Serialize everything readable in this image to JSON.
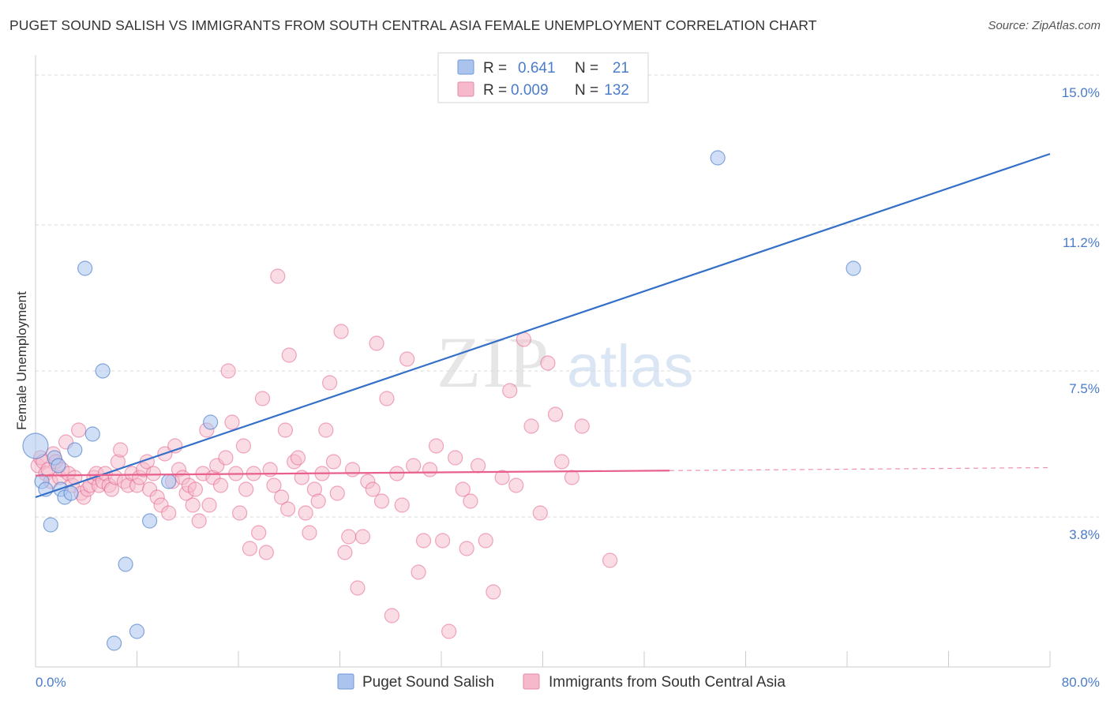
{
  "title": "PUGET SOUND SALISH VS IMMIGRANTS FROM SOUTH CENTRAL ASIA FEMALE UNEMPLOYMENT CORRELATION CHART",
  "source": "Source: ZipAtlas.com",
  "watermark": {
    "zip": "ZIP",
    "atlas": "atlas"
  },
  "colors": {
    "blue": "#4a7cc9",
    "blue_fill": "#aac4ee",
    "blue_line": "#3570c8",
    "pink": "#e3638d",
    "pink_fill": "#f6b9cc",
    "pink_line": "#e8608c",
    "grid": "#d9d9d9"
  },
  "legend": {
    "rows": [
      {
        "r_label": "R =",
        "r_value": "0.641",
        "n_label": "N =",
        "n_value": "21",
        "series": "blue"
      },
      {
        "r_label": "R =",
        "r_value": "0.009",
        "n_label": "N =",
        "n_value": "132",
        "series": "pink"
      }
    ]
  },
  "chart_data": {
    "type": "scatter",
    "title": "PUGET SOUND SALISH VS IMMIGRANTS FROM SOUTH CENTRAL ASIA FEMALE UNEMPLOYMENT CORRELATION CHART",
    "xlabel": "",
    "ylabel": "Female Unemployment",
    "xlim": [
      0,
      80
    ],
    "ylim": [
      0,
      15.5
    ],
    "x_tick_labels": [
      "0.0%",
      "80.0%"
    ],
    "y_ticks": [
      3.8,
      7.5,
      11.2,
      15.0
    ],
    "y_tick_labels": [
      "3.8%",
      "7.5%",
      "11.2%",
      "15.0%"
    ],
    "grid": true,
    "legend_position": "top-center",
    "series": [
      {
        "name": "Puget Sound Salish",
        "color": "blue",
        "points": [
          [
            0.0,
            5.6
          ],
          [
            0.5,
            4.7
          ],
          [
            0.8,
            4.5
          ],
          [
            1.2,
            3.6
          ],
          [
            1.5,
            5.3
          ],
          [
            1.8,
            5.1
          ],
          [
            2.0,
            4.5
          ],
          [
            2.3,
            4.3
          ],
          [
            2.8,
            4.4
          ],
          [
            3.1,
            5.5
          ],
          [
            3.9,
            10.1
          ],
          [
            4.5,
            5.9
          ],
          [
            5.3,
            7.5
          ],
          [
            6.2,
            0.6
          ],
          [
            7.1,
            2.6
          ],
          [
            8.0,
            0.9
          ],
          [
            9.0,
            3.7
          ],
          [
            10.5,
            4.7
          ],
          [
            13.8,
            6.2
          ],
          [
            53.8,
            12.9
          ],
          [
            64.5,
            10.1
          ]
        ],
        "trend": {
          "x": [
            0,
            80
          ],
          "y": [
            4.3,
            13.0
          ],
          "dashed_from": null
        }
      },
      {
        "name": "Immigrants from South Central Asia",
        "color": "pink",
        "points": [
          [
            0.2,
            5.1
          ],
          [
            0.4,
            5.3
          ],
          [
            0.6,
            5.2
          ],
          [
            0.8,
            4.9
          ],
          [
            1.0,
            5.0
          ],
          [
            1.2,
            4.7
          ],
          [
            1.4,
            5.4
          ],
          [
            1.6,
            5.2
          ],
          [
            1.9,
            4.8
          ],
          [
            2.1,
            5.0
          ],
          [
            2.4,
            5.7
          ],
          [
            2.6,
            4.9
          ],
          [
            2.9,
            4.6
          ],
          [
            3.1,
            4.8
          ],
          [
            3.4,
            6.0
          ],
          [
            3.6,
            4.4
          ],
          [
            3.8,
            4.3
          ],
          [
            4.1,
            4.5
          ],
          [
            4.3,
            4.6
          ],
          [
            4.6,
            4.8
          ],
          [
            4.8,
            4.9
          ],
          [
            5.0,
            4.6
          ],
          [
            5.3,
            4.7
          ],
          [
            5.5,
            4.9
          ],
          [
            5.8,
            4.6
          ],
          [
            6.0,
            4.5
          ],
          [
            6.3,
            4.8
          ],
          [
            6.5,
            5.2
          ],
          [
            6.7,
            5.5
          ],
          [
            7.0,
            4.7
          ],
          [
            7.3,
            4.6
          ],
          [
            7.6,
            4.9
          ],
          [
            8.0,
            4.6
          ],
          [
            8.2,
            4.8
          ],
          [
            8.5,
            5.0
          ],
          [
            8.8,
            5.2
          ],
          [
            9.0,
            4.5
          ],
          [
            9.3,
            4.9
          ],
          [
            9.6,
            4.3
          ],
          [
            9.9,
            4.1
          ],
          [
            10.2,
            5.4
          ],
          [
            10.5,
            3.9
          ],
          [
            10.8,
            4.7
          ],
          [
            11.0,
            5.6
          ],
          [
            11.3,
            5.0
          ],
          [
            11.6,
            4.8
          ],
          [
            11.9,
            4.4
          ],
          [
            12.1,
            4.6
          ],
          [
            12.4,
            4.1
          ],
          [
            12.6,
            4.5
          ],
          [
            12.9,
            3.7
          ],
          [
            13.2,
            4.9
          ],
          [
            13.5,
            6.0
          ],
          [
            13.7,
            4.1
          ],
          [
            14.0,
            4.8
          ],
          [
            14.3,
            5.1
          ],
          [
            14.6,
            4.6
          ],
          [
            15.0,
            5.3
          ],
          [
            15.2,
            7.5
          ],
          [
            15.5,
            6.2
          ],
          [
            15.8,
            4.9
          ],
          [
            16.1,
            3.9
          ],
          [
            16.4,
            5.6
          ],
          [
            16.6,
            4.5
          ],
          [
            16.9,
            3.0
          ],
          [
            17.2,
            4.9
          ],
          [
            17.6,
            3.4
          ],
          [
            17.9,
            6.8
          ],
          [
            18.2,
            2.9
          ],
          [
            18.5,
            5.0
          ],
          [
            18.8,
            4.6
          ],
          [
            19.1,
            9.9
          ],
          [
            19.4,
            4.3
          ],
          [
            19.7,
            6.0
          ],
          [
            20.0,
            7.9
          ],
          [
            20.4,
            5.2
          ],
          [
            20.7,
            5.3
          ],
          [
            21.0,
            4.8
          ],
          [
            21.3,
            3.9
          ],
          [
            21.6,
            3.4
          ],
          [
            22.0,
            4.5
          ],
          [
            22.3,
            4.2
          ],
          [
            22.6,
            4.9
          ],
          [
            22.9,
            6.0
          ],
          [
            23.2,
            7.2
          ],
          [
            23.5,
            5.2
          ],
          [
            23.8,
            4.4
          ],
          [
            24.1,
            8.5
          ],
          [
            24.4,
            2.9
          ],
          [
            24.7,
            3.3
          ],
          [
            25.0,
            5.0
          ],
          [
            25.4,
            2.0
          ],
          [
            25.8,
            3.3
          ],
          [
            26.2,
            4.7
          ],
          [
            26.6,
            4.5
          ],
          [
            26.9,
            8.2
          ],
          [
            27.3,
            4.2
          ],
          [
            27.7,
            6.8
          ],
          [
            28.1,
            1.3
          ],
          [
            28.5,
            4.9
          ],
          [
            28.9,
            4.1
          ],
          [
            29.3,
            7.8
          ],
          [
            29.8,
            5.1
          ],
          [
            30.2,
            2.4
          ],
          [
            30.6,
            3.2
          ],
          [
            31.1,
            5.0
          ],
          [
            31.6,
            5.6
          ],
          [
            32.1,
            3.2
          ],
          [
            32.6,
            0.9
          ],
          [
            33.1,
            5.3
          ],
          [
            33.7,
            4.5
          ],
          [
            34.3,
            4.2
          ],
          [
            34.9,
            5.1
          ],
          [
            35.5,
            3.2
          ],
          [
            36.1,
            1.9
          ],
          [
            36.8,
            4.8
          ],
          [
            37.4,
            7.0
          ],
          [
            37.9,
            4.6
          ],
          [
            38.5,
            8.3
          ],
          [
            39.1,
            6.1
          ],
          [
            39.8,
            3.9
          ],
          [
            40.4,
            7.7
          ],
          [
            41.0,
            6.4
          ],
          [
            41.5,
            5.2
          ],
          [
            42.3,
            4.8
          ],
          [
            43.1,
            6.1
          ],
          [
            45.3,
            2.7
          ],
          [
            19.9,
            4.0
          ],
          [
            34.0,
            3.0
          ]
        ],
        "trend": {
          "x": [
            0,
            80
          ],
          "y": [
            4.85,
            5.05
          ],
          "dashed_from": 50
        }
      }
    ]
  },
  "bottom_legend": [
    {
      "label": "Puget Sound Salish",
      "color": "blue"
    },
    {
      "label": "Immigrants from South Central Asia",
      "color": "pink"
    }
  ]
}
